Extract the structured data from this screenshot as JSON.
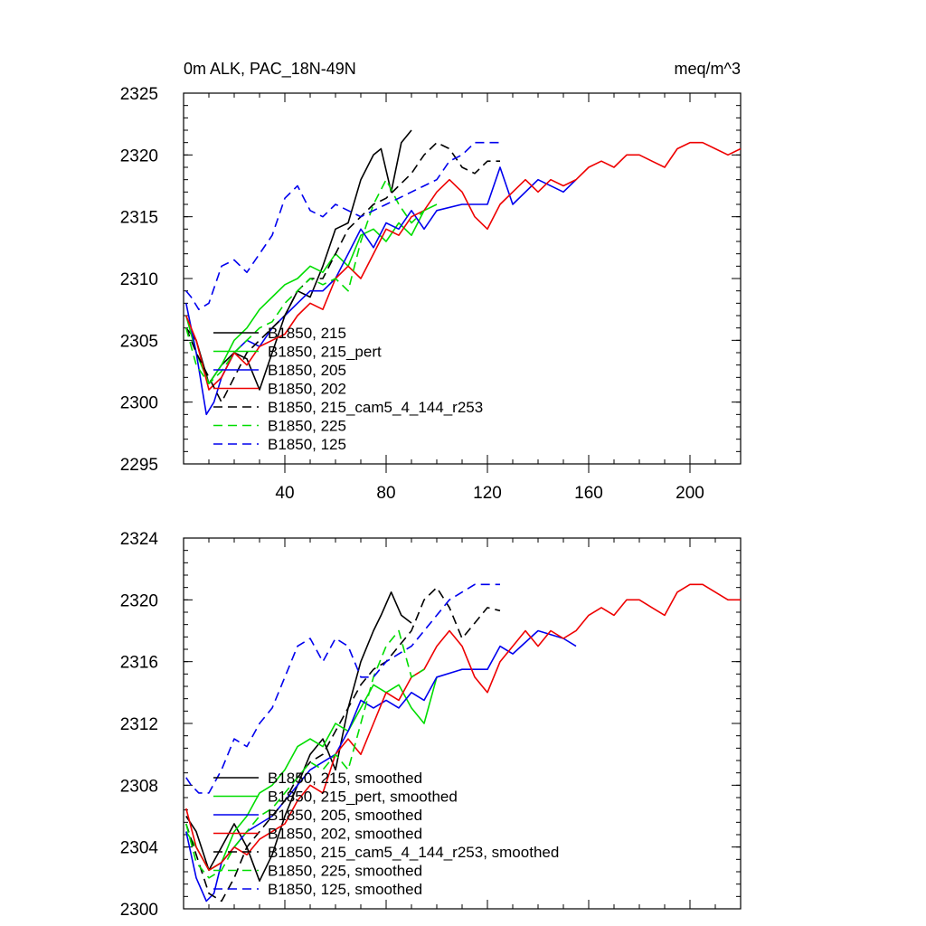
{
  "chart_data": [
    {
      "type": "line",
      "title": "0m ALK, PAC_18N-49N",
      "units": "meq/m^3",
      "xlim": [
        0,
        220
      ],
      "ylim": [
        2295,
        2325
      ],
      "xticks": [
        40,
        80,
        120,
        160,
        200
      ],
      "yticks": [
        2295,
        2300,
        2305,
        2310,
        2315,
        2320,
        2325
      ],
      "series": [
        {
          "name": "B1850, 215",
          "color": "#000000",
          "dash": "solid",
          "x": [
            1,
            5,
            10,
            15,
            20,
            25,
            30,
            35,
            40,
            45,
            50,
            55,
            60,
            65,
            70,
            75,
            78,
            82,
            86,
            90
          ],
          "values": [
            2306,
            2305,
            2301.5,
            2303,
            2304,
            2303.5,
            2301,
            2304,
            2307,
            2309,
            2308.5,
            2311,
            2314,
            2314.5,
            2318,
            2320,
            2320.5,
            2317,
            2321,
            2322
          ]
        },
        {
          "name": "B1850, 215_pert",
          "color": "#00dd00",
          "dash": "solid",
          "x": [
            1,
            5,
            10,
            15,
            20,
            25,
            30,
            35,
            40,
            45,
            50,
            55,
            60,
            65,
            70,
            75,
            80,
            85,
            90,
            95,
            100
          ],
          "values": [
            2307,
            2304,
            2301.5,
            2303,
            2305,
            2306,
            2307.5,
            2308.5,
            2309.5,
            2310,
            2311,
            2310.5,
            2312,
            2311,
            2313.5,
            2314,
            2313,
            2314.5,
            2313.5,
            2315.5,
            2316
          ]
        },
        {
          "name": "B1850, 205",
          "color": "#0000ee",
          "dash": "solid",
          "x": [
            1,
            5,
            9,
            12,
            15,
            20,
            25,
            30,
            35,
            40,
            45,
            50,
            55,
            60,
            65,
            70,
            75,
            80,
            85,
            90,
            95,
            100,
            110,
            120,
            125,
            130,
            140,
            150,
            155
          ],
          "values": [
            2308,
            2304,
            2299,
            2300,
            2302,
            2304,
            2305,
            2304.5,
            2306,
            2307,
            2308,
            2309,
            2309,
            2310,
            2312,
            2314,
            2312.5,
            2314.5,
            2314,
            2315.5,
            2314,
            2315.5,
            2316,
            2316,
            2319,
            2316,
            2318,
            2317,
            2318
          ]
        },
        {
          "name": "B1850, 202",
          "color": "#ee0000",
          "dash": "solid",
          "x": [
            1,
            5,
            10,
            15,
            20,
            25,
            30,
            35,
            40,
            45,
            50,
            55,
            60,
            65,
            70,
            75,
            80,
            85,
            90,
            95,
            100,
            105,
            110,
            115,
            120,
            125,
            130,
            135,
            140,
            145,
            150,
            155,
            160,
            165,
            170,
            175,
            180,
            185,
            190,
            195,
            200,
            205,
            210,
            215,
            220
          ],
          "values": [
            2307,
            2305,
            2301,
            2302,
            2304,
            2303,
            2304.5,
            2305,
            2305.5,
            2307,
            2308,
            2307.5,
            2310,
            2311,
            2310,
            2312,
            2314,
            2313.5,
            2315,
            2315.5,
            2317,
            2318,
            2317,
            2315,
            2314,
            2316,
            2317,
            2318,
            2317,
            2318,
            2317.5,
            2318,
            2319,
            2319.5,
            2319,
            2320,
            2320,
            2319.5,
            2319,
            2320.5,
            2321,
            2321,
            2320.5,
            2320,
            2320.5
          ]
        },
        {
          "name": "B1850, 215_cam5_4_144_r253",
          "color": "#000000",
          "dash": "dashed",
          "x": [
            1,
            5,
            10,
            15,
            20,
            25,
            30,
            35,
            40,
            45,
            50,
            55,
            60,
            65,
            70,
            75,
            80,
            85,
            90,
            95,
            100,
            105,
            110,
            115,
            120,
            125
          ],
          "values": [
            2306,
            2304,
            2302,
            2300,
            2302,
            2304,
            2305,
            2306,
            2307,
            2309,
            2310,
            2310,
            2312,
            2314,
            2315,
            2316,
            2316.5,
            2317.5,
            2318.5,
            2320,
            2321,
            2320.5,
            2319,
            2318.5,
            2319.5,
            2319.5
          ]
        },
        {
          "name": "B1850, 225",
          "color": "#00dd00",
          "dash": "dashed",
          "x": [
            1,
            5,
            10,
            15,
            20,
            25,
            30,
            35,
            40,
            45,
            50,
            55,
            60,
            65,
            70,
            75,
            80,
            85,
            90,
            95
          ],
          "values": [
            2306,
            2303,
            2301.5,
            2302.5,
            2304,
            2305,
            2306,
            2306.5,
            2308,
            2309,
            2310,
            2309.5,
            2310,
            2309,
            2313,
            2316,
            2318,
            2316,
            2314.5,
            2315.5
          ]
        },
        {
          "name": "B1850, 125",
          "color": "#0000ee",
          "dash": "dashed",
          "x": [
            1,
            3,
            6,
            10,
            15,
            20,
            25,
            30,
            35,
            40,
            45,
            50,
            55,
            60,
            65,
            70,
            75,
            80,
            85,
            90,
            95,
            100,
            105,
            110,
            115,
            120,
            125
          ],
          "values": [
            2309,
            2308.5,
            2307.5,
            2308,
            2311,
            2311.5,
            2310.5,
            2312,
            2313.5,
            2316.5,
            2317.5,
            2315.5,
            2315,
            2316,
            2315.5,
            2315,
            2315.5,
            2316,
            2316.5,
            2317,
            2317.5,
            2318,
            2319.5,
            2320,
            2321,
            2321,
            2321
          ]
        }
      ]
    },
    {
      "type": "line",
      "title": "",
      "xlim": [
        0,
        220
      ],
      "ylim": [
        2300,
        2324
      ],
      "yticks": [
        2300,
        2304,
        2308,
        2312,
        2316,
        2320,
        2324
      ],
      "series": [
        {
          "name": "B1850, 215, smoothed",
          "color": "#000000",
          "dash": "solid",
          "x": [
            1,
            5,
            10,
            15,
            20,
            25,
            30,
            35,
            40,
            45,
            50,
            55,
            60,
            65,
            70,
            75,
            78,
            82,
            86,
            90
          ],
          "values": [
            2306,
            2305,
            2302.5,
            2304,
            2305.5,
            2304,
            2301.8,
            2303.5,
            2306,
            2308,
            2310,
            2311,
            2309,
            2313,
            2316,
            2318,
            2319,
            2320.5,
            2319,
            2318.5
          ]
        },
        {
          "name": "B1850, 215_pert, smoothed",
          "color": "#00dd00",
          "dash": "solid",
          "x": [
            1,
            5,
            10,
            15,
            20,
            25,
            30,
            35,
            40,
            45,
            50,
            55,
            60,
            65,
            70,
            75,
            80,
            85,
            90,
            95,
            100
          ],
          "values": [
            2305,
            2304,
            2302.5,
            2303,
            2305,
            2306,
            2307.5,
            2308,
            2309,
            2310.5,
            2311,
            2310.5,
            2312,
            2311.5,
            2313,
            2314.5,
            2314,
            2314.5,
            2313,
            2312,
            2315
          ]
        },
        {
          "name": "B1850, 205, smoothed",
          "color": "#0000ee",
          "dash": "solid",
          "x": [
            1,
            5,
            9,
            12,
            15,
            20,
            25,
            30,
            35,
            40,
            45,
            50,
            55,
            60,
            65,
            70,
            75,
            80,
            85,
            90,
            95,
            100,
            110,
            120,
            125,
            130,
            140,
            150,
            155
          ],
          "values": [
            2305,
            2302,
            2300.5,
            2301,
            2303,
            2304,
            2305,
            2305.5,
            2306,
            2307,
            2308,
            2309,
            2309.5,
            2310,
            2311.5,
            2313.5,
            2313,
            2313.5,
            2313,
            2314,
            2313.5,
            2315,
            2315.5,
            2315.5,
            2317,
            2316.5,
            2318,
            2317.5,
            2317
          ]
        },
        {
          "name": "B1850, 202, smoothed",
          "color": "#ee0000",
          "dash": "solid",
          "x": [
            1,
            5,
            10,
            15,
            20,
            25,
            30,
            35,
            40,
            45,
            50,
            55,
            60,
            65,
            70,
            75,
            80,
            85,
            90,
            95,
            100,
            105,
            110,
            115,
            120,
            125,
            130,
            135,
            140,
            145,
            150,
            155,
            160,
            165,
            170,
            175,
            180,
            185,
            190,
            195,
            200,
            205,
            210,
            215,
            220
          ],
          "values": [
            2306.5,
            2304,
            2302.5,
            2303,
            2304,
            2303.5,
            2304.5,
            2305,
            2305.5,
            2307,
            2308,
            2307.5,
            2310,
            2311,
            2310,
            2312,
            2314,
            2313.5,
            2315,
            2315.5,
            2317,
            2318,
            2317,
            2315,
            2314,
            2316,
            2317,
            2318,
            2317,
            2318,
            2317.5,
            2318,
            2319,
            2319.5,
            2319,
            2320,
            2320,
            2319.5,
            2319,
            2320.5,
            2321,
            2321,
            2320.5,
            2320,
            2320
          ]
        },
        {
          "name": "B1850, 215_cam5_4_144_r253, smoothed",
          "color": "#000000",
          "dash": "dashed",
          "x": [
            1,
            5,
            10,
            15,
            20,
            25,
            30,
            35,
            40,
            45,
            50,
            55,
            60,
            65,
            70,
            75,
            80,
            85,
            90,
            95,
            100,
            105,
            110,
            115,
            120,
            125
          ],
          "values": [
            2305.5,
            2303.5,
            2301,
            2300.5,
            2302,
            2304,
            2305,
            2306,
            2307,
            2308.5,
            2309.5,
            2310,
            2311.5,
            2313,
            2314.5,
            2315.5,
            2316,
            2317,
            2318,
            2320,
            2320.8,
            2319.5,
            2317.5,
            2318.5,
            2319.5,
            2319.3
          ]
        },
        {
          "name": "B1850, 225, smoothed",
          "color": "#00dd00",
          "dash": "dashed",
          "x": [
            1,
            5,
            10,
            15,
            20,
            25,
            30,
            35,
            40,
            45,
            50,
            55,
            60,
            65,
            70,
            75,
            80,
            85,
            90,
            95
          ],
          "values": [
            2305.5,
            2303,
            2302,
            2302.5,
            2304,
            2305,
            2306,
            2306.5,
            2307.5,
            2308.5,
            2309.5,
            2309,
            2310,
            2309,
            2312,
            2315,
            2317,
            2318,
            2315,
            2315.5
          ]
        },
        {
          "name": "B1850, 125, smoothed",
          "color": "#0000ee",
          "dash": "dashed",
          "x": [
            1,
            3,
            6,
            10,
            15,
            20,
            25,
            30,
            35,
            40,
            45,
            50,
            55,
            60,
            65,
            70,
            75,
            80,
            85,
            90,
            95,
            100,
            105,
            110,
            115,
            120,
            125
          ],
          "values": [
            2308.5,
            2308,
            2307.5,
            2307.5,
            2309,
            2311,
            2310.5,
            2312,
            2313,
            2315,
            2317,
            2317.5,
            2316,
            2317.5,
            2317,
            2315,
            2315,
            2316,
            2316.5,
            2317,
            2318,
            2319,
            2320,
            2320.5,
            2321,
            2321,
            2321
          ]
        }
      ]
    }
  ]
}
